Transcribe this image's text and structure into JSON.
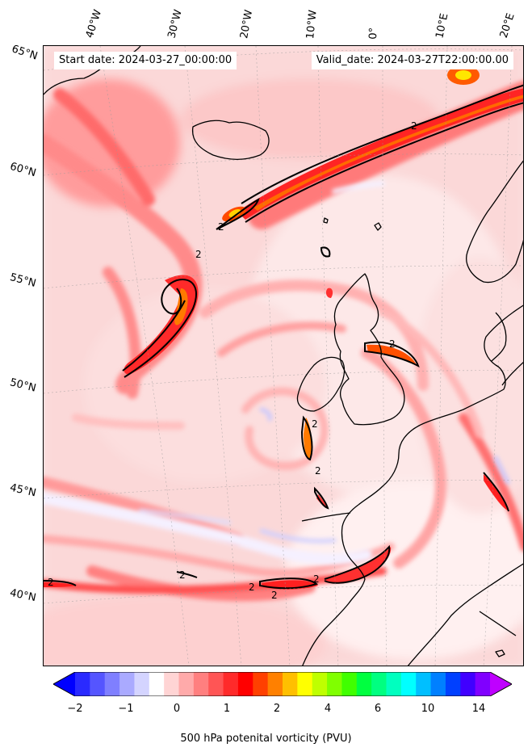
{
  "map": {
    "start_date": "Start date: 2024-03-27_00:00:00",
    "valid_date": "Valid_date: 2024-03-27T22:00:00.00",
    "longitude_labels": [
      "40°W",
      "30°W",
      "20°W",
      "10°W",
      "0°",
      "10°E",
      "20°E"
    ],
    "latitude_labels": [
      "65°N",
      "60°N",
      "55°N",
      "50°N",
      "45°N",
      "40°N"
    ],
    "contour_label": "2",
    "background_color": "#fbe6e6",
    "coastline_color": "#000000"
  },
  "colorbar": {
    "label": "500 hPa potenital vorticity (PVU)",
    "tick_labels": [
      "−2",
      "−1",
      "0",
      "1",
      "2",
      "4",
      "6",
      "10",
      "14"
    ],
    "colors": [
      "#0000ff",
      "#2a2aff",
      "#5555ff",
      "#7f7fff",
      "#aaaaff",
      "#d4d4ff",
      "#ffffff",
      "#ffd4d4",
      "#ffaaaa",
      "#ff7f7f",
      "#ff5555",
      "#ff2a2a",
      "#ff0000",
      "#ff4000",
      "#ff8000",
      "#ffbf00",
      "#ffff00",
      "#bfff00",
      "#80ff00",
      "#40ff00",
      "#00ff40",
      "#00ff80",
      "#00ffbf",
      "#00ffff",
      "#00bfff",
      "#0080ff",
      "#0040ff",
      "#4000ff",
      "#8000ff",
      "#bf00ff"
    ]
  }
}
